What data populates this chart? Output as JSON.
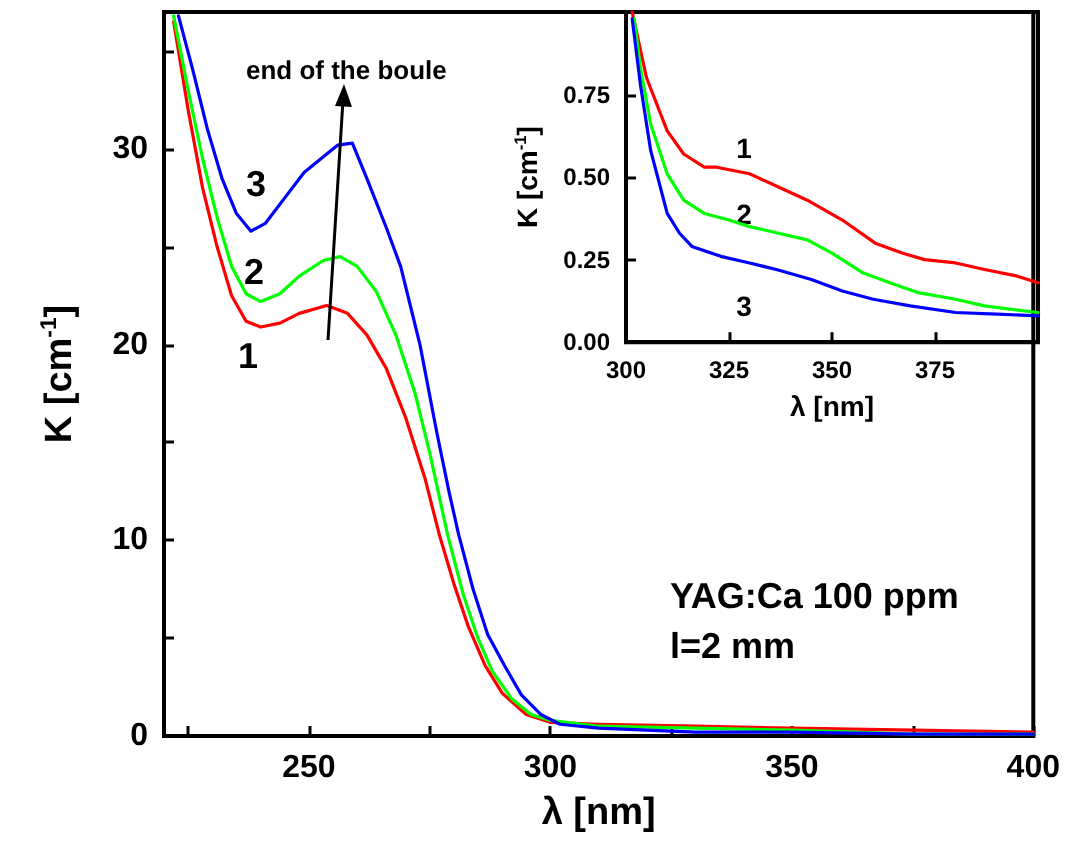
{
  "chart_data": [
    {
      "type": "line",
      "xlabel": "λ [nm]",
      "ylabel": "K [cm$^{-1}$]",
      "xlim": [
        220,
        400
      ],
      "xticks": [
        {
          "value": 225,
          "label": null
        },
        250,
        {
          "value": 275,
          "label": null
        },
        300,
        {
          "value": 325,
          "label": null
        },
        350,
        {
          "value": 375,
          "label": null
        },
        400
      ],
      "ylim": [
        0,
        37
      ],
      "yticks": [
        0,
        {
          "value": 5,
          "label": null
        },
        10,
        {
          "value": 15,
          "label": null
        },
        20,
        {
          "value": 25,
          "label": null
        },
        30,
        {
          "value": 35,
          "label": null
        }
      ],
      "grid": false,
      "legend": false,
      "marker": "none",
      "line_style": "solid",
      "series": [
        {
          "name": "1",
          "color": "#ff0000",
          "x": [
            222,
            225,
            228,
            231,
            234,
            237,
            240,
            244,
            248,
            253.7,
            258,
            262,
            266,
            270,
            274,
            277,
            280,
            283,
            286.5,
            290,
            295,
            300,
            310,
            330,
            350,
            375,
            400
          ],
          "values": [
            36.5,
            32,
            28,
            25,
            22.5,
            21.2,
            20.9,
            21.1,
            21.6,
            22.0,
            21.6,
            20.5,
            18.8,
            16.3,
            13.2,
            10.3,
            7.8,
            5.6,
            3.6,
            2.2,
            1.1,
            0.7,
            0.6,
            0.5,
            0.4,
            0.3,
            0.2
          ]
        },
        {
          "name": "2",
          "color": "#00ff00",
          "x": [
            222,
            225,
            228,
            231,
            234,
            237,
            240,
            244,
            248,
            253,
            256.5,
            260,
            264,
            268,
            272,
            275,
            278.7,
            282,
            285,
            288,
            292,
            296,
            300,
            310,
            330,
            350,
            375,
            400
          ],
          "values": [
            36.8,
            33,
            29.5,
            26.5,
            24,
            22.6,
            22.2,
            22.6,
            23.5,
            24.3,
            24.5,
            24,
            22.7,
            20.5,
            17.5,
            14.5,
            10.3,
            7.2,
            5.0,
            3.3,
            1.9,
            1.1,
            0.8,
            0.5,
            0.4,
            0.3,
            0.1,
            0.1
          ]
        },
        {
          "name": "3",
          "color": "#0000ff",
          "x": [
            223,
            226,
            229,
            232,
            235,
            238,
            241,
            245,
            249,
            253,
            256,
            259,
            262,
            266,
            269,
            273,
            276.5,
            279,
            281,
            284,
            287,
            290.5,
            294,
            298,
            302,
            310,
            330,
            350,
            375,
            400
          ],
          "values": [
            36.8,
            34,
            31,
            28.5,
            26.7,
            25.8,
            26.2,
            27.5,
            28.8,
            29.6,
            30.2,
            30.3,
            28.5,
            26,
            24,
            20,
            15.5,
            12.5,
            10.3,
            7.5,
            5.2,
            3.6,
            2.1,
            1.1,
            0.6,
            0.4,
            0.2,
            0.2,
            0.1,
            0.1
          ]
        }
      ],
      "annotations": [
        "end of the boule",
        "YAG:Ca 100 ppm",
        "l=2 mm"
      ]
    },
    {
      "type": "line",
      "xlabel": "λ [nm]",
      "ylabel": "K [cm$^{-1}$]",
      "xlim": [
        300,
        400
      ],
      "xticks": [
        300,
        325,
        350,
        375
      ],
      "ylim": [
        0,
        1
      ],
      "yticks": [
        {
          "value": 0,
          "label": "0.00"
        },
        0.25,
        {
          "value": 0.5,
          "label": "0.50"
        },
        0.75
      ],
      "grid": false,
      "legend": false,
      "marker": "none",
      "line_style": "solid",
      "series": [
        {
          "name": "1",
          "color": "#ff0000",
          "x": [
            301.5,
            305,
            310,
            314,
            319,
            322,
            330,
            337,
            344,
            352.5,
            360.5,
            367,
            372.5,
            380,
            387,
            395,
            400
          ],
          "values": [
            1.0,
            0.8,
            0.64,
            0.57,
            0.53,
            0.53,
            0.51,
            0.47,
            0.43,
            0.37,
            0.3,
            0.27,
            0.25,
            0.24,
            0.22,
            0.2,
            0.18
          ]
        },
        {
          "name": "2",
          "color": "#00ff00",
          "x": [
            302,
            303.5,
            306,
            310,
            314,
            319,
            325,
            330,
            337,
            344,
            350,
            357.5,
            364,
            371,
            380,
            387,
            400
          ],
          "values": [
            0.98,
            0.83,
            0.66,
            0.51,
            0.43,
            0.39,
            0.37,
            0.35,
            0.33,
            0.31,
            0.27,
            0.21,
            0.18,
            0.15,
            0.13,
            0.11,
            0.09
          ]
        },
        {
          "name": "3",
          "color": "#0000ff",
          "x": [
            301.5,
            303.5,
            306,
            310,
            313,
            316,
            323,
            330,
            336.5,
            345,
            352.5,
            360,
            369,
            380,
            390,
            400
          ],
          "values": [
            0.98,
            0.78,
            0.58,
            0.39,
            0.33,
            0.29,
            0.26,
            0.24,
            0.22,
            0.19,
            0.155,
            0.13,
            0.11,
            0.09,
            0.085,
            0.08
          ]
        }
      ]
    }
  ]
}
